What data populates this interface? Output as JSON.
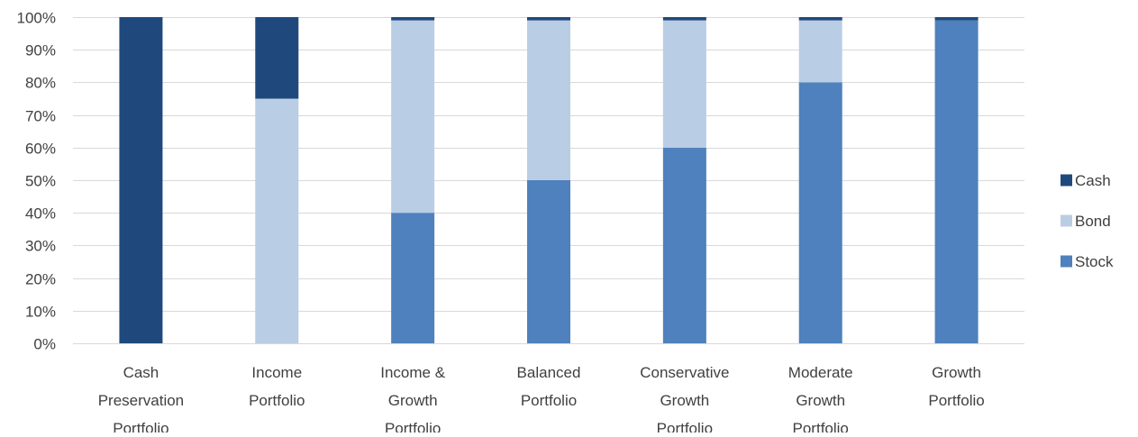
{
  "chart_data": {
    "type": "bar",
    "stacked": true,
    "percent": true,
    "title": "",
    "xlabel": "",
    "ylabel": "",
    "ylim": [
      0,
      100
    ],
    "yticks": [
      "0%",
      "10%",
      "20%",
      "30%",
      "40%",
      "50%",
      "60%",
      "70%",
      "80%",
      "90%",
      "100%"
    ],
    "grid": true,
    "legend_position": "right",
    "categories": [
      [
        "Cash",
        "Preservation",
        "Portfolio"
      ],
      [
        "Income",
        "Portfolio"
      ],
      [
        "Income &",
        "Growth",
        "Portfolio"
      ],
      [
        "Balanced",
        "Portfolio"
      ],
      [
        "Conservative",
        "Growth",
        "Portfolio"
      ],
      [
        "Moderate",
        "Growth",
        "Portfolio"
      ],
      [
        "Growth",
        "Portfolio"
      ]
    ],
    "series": [
      {
        "name": "Stock",
        "color": "#4e81bd",
        "values": [
          0,
          0,
          40,
          50,
          60,
          80,
          99
        ]
      },
      {
        "name": "Bond",
        "color": "#b9cde5",
        "values": [
          0,
          75,
          59,
          49,
          39,
          19,
          0
        ]
      },
      {
        "name": "Cash",
        "color": "#1f497d",
        "values": [
          100,
          25,
          1,
          1,
          1,
          1,
          1
        ]
      }
    ],
    "legend_order": [
      "Cash",
      "Bond",
      "Stock"
    ]
  }
}
